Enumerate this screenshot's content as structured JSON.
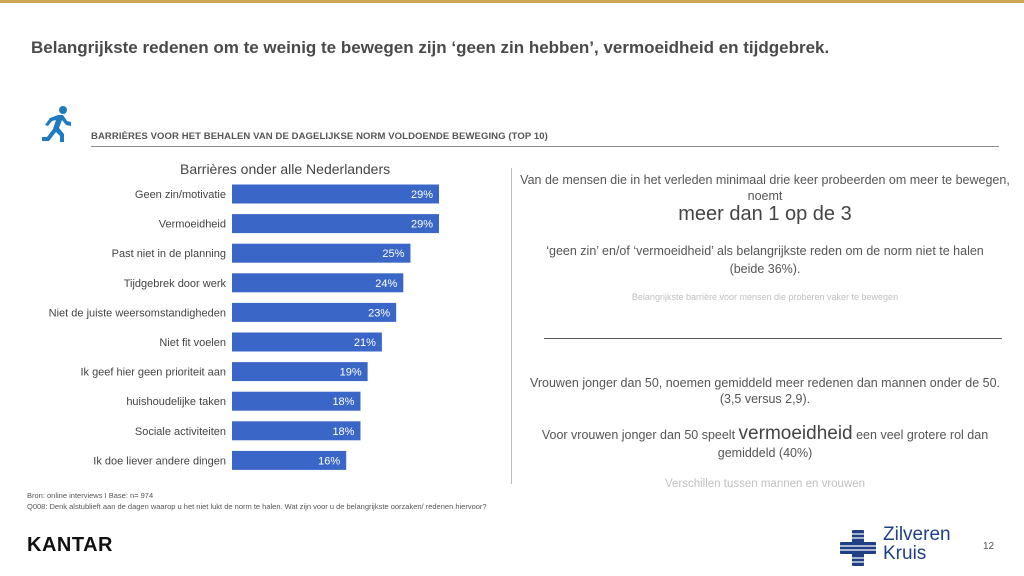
{
  "title": "Belangrijkste redenen om te weinig te bewegen zijn ‘geen zin hebben’, vermoeidheid en tijdgebrek.",
  "section_header": "BARRIÈRES VOOR HET BEHALEN VAN DE DAGELIJKSE NORM VOLDOENDE BEWEGING (TOP 10)",
  "chart_data": {
    "type": "bar",
    "orientation": "horizontal",
    "title": "Barrières onder alle Nederlanders",
    "categories": [
      "Geen zin/motivatie",
      "Vermoeidheid",
      "Past niet in de planning",
      "Tijdgebrek door werk",
      "Niet de juiste weersomstandigheden",
      "Niet fit voelen",
      "Ik geef hier geen prioriteit aan",
      "huishoudelijke taken",
      "Sociale activiteiten",
      "Ik doe liever andere dingen"
    ],
    "values": [
      29,
      29,
      25,
      24,
      23,
      21,
      19,
      18,
      18,
      16
    ],
    "value_labels": [
      "29%",
      "29%",
      "25%",
      "24%",
      "23%",
      "21%",
      "19%",
      "18%",
      "18%",
      "16%"
    ],
    "unit": "%",
    "bar_color": "#3a66c8",
    "xlim": [
      0,
      29
    ],
    "grid": false,
    "legend": "none"
  },
  "right_panel": {
    "text1": "Van de mensen die in het verleden minimaal drie keer probeerden om meer te bewegen, noemt",
    "highlight1": "meer dan 1 op de 3",
    "text2": "‘geen zin’ en/of ‘vermoeidheid’ als belangrijkste reden om de norm niet te halen (beide 36%).",
    "caption1": "Belangrijkste barrière voor mensen die proberen vaker te bewegen",
    "text3": "Vrouwen jonger dan 50, noemen gemiddeld meer redenen dan mannen onder de 50. (3,5 versus 2,9).",
    "text4_pre": "Voor vrouwen jonger dan 50 speelt",
    "highlight2": "vermoeidheid",
    "text4_post": "een veel grotere rol dan gemiddeld (40%)",
    "caption2": "Verschillen tussen mannen en vrouwen"
  },
  "source": {
    "line1": "Bron: online interviews I Base: n= 974",
    "line2": "Q008: Denk alstublieft aan de dagen waarop u het niet lukt de norm te halen. Wat zijn voor u de belangrijkste oorzaken/ redenen hiervoor?"
  },
  "footer": {
    "brand_left": "KANTAR",
    "brand_right_line1": "Zilveren",
    "brand_right_line2": "Kruis",
    "page_number": "12"
  },
  "colors": {
    "accent_gold": "#c9a64f",
    "icon_blue": "#1f7bbf",
    "logo_navy": "#1f3f86"
  },
  "icons": {
    "section": "runner-icon",
    "logo": "cross-logo-icon"
  }
}
